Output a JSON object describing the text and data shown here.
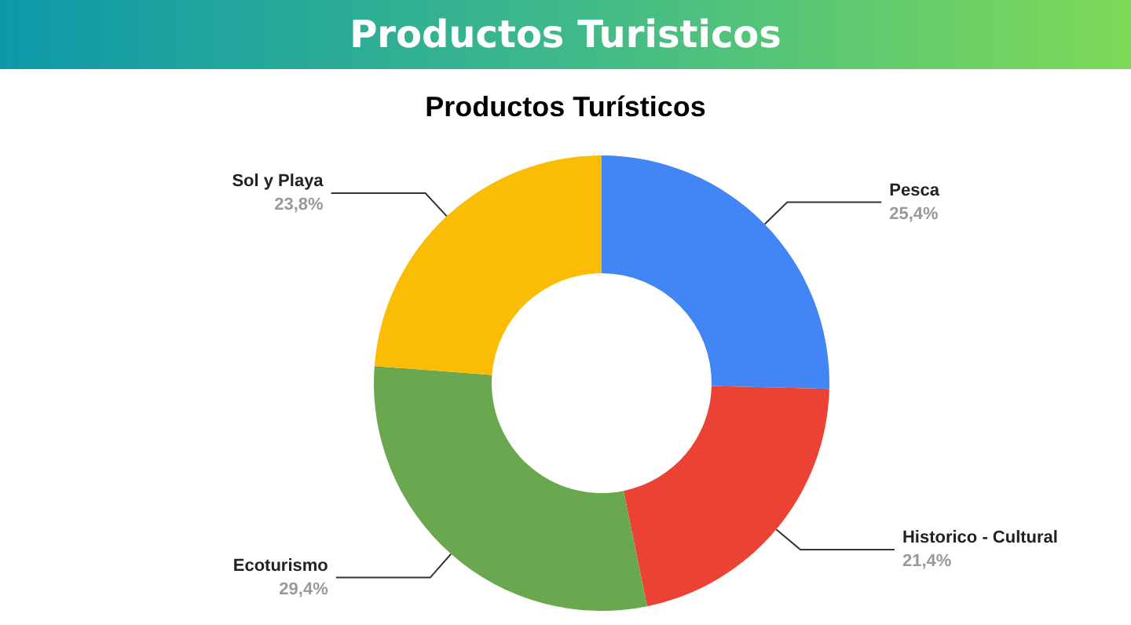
{
  "chart_data": {
    "type": "donut",
    "title": "Productos Turisticos",
    "subtitle": "Productos Turísticos",
    "categories": [
      "Pesca",
      "Historico - Cultural",
      "Ecoturismo",
      "Sol y Playa"
    ],
    "values": [
      25.4,
      21.4,
      29.4,
      23.8
    ],
    "value_labels": [
      "25,4%",
      "21,4%",
      "29,4%",
      "23,8%"
    ],
    "colors": [
      "#4285f4",
      "#ea4335",
      "#6aa84f",
      "#fbbc04"
    ],
    "legend": false
  }
}
